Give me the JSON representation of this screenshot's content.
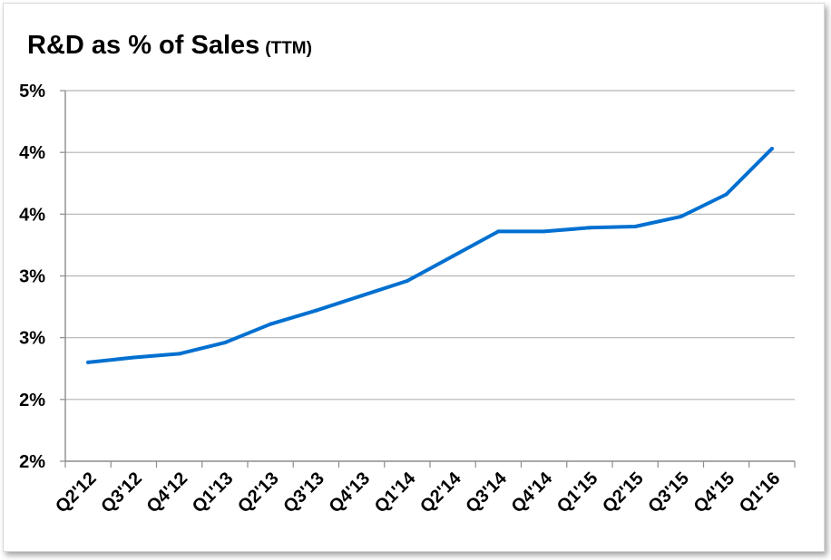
{
  "chart_data": {
    "type": "line",
    "title": "R&D as % of Sales",
    "subtitle": "(TTM)",
    "xlabel": "",
    "ylabel": "",
    "categories": [
      "Q2'12",
      "Q3'12",
      "Q4'12",
      "Q1'13",
      "Q2'13",
      "Q3'13",
      "Q4'13",
      "Q1'14",
      "Q2'14",
      "Q3'14",
      "Q4'14",
      "Q1'15",
      "Q2'15",
      "Q3'15",
      "Q4'15",
      "Q1'16"
    ],
    "series": [
      {
        "values": [
          2.3,
          2.34,
          2.37,
          2.46,
          2.61,
          2.72,
          2.84,
          2.96,
          3.16,
          3.36,
          3.36,
          3.39,
          3.4,
          3.48,
          3.66,
          4.03
        ],
        "color": "#0070d0"
      }
    ],
    "ylim": [
      1.5,
      4.5
    ],
    "y_ticks": [
      1.5,
      2.0,
      2.5,
      3.0,
      3.5,
      4.0,
      4.5
    ],
    "y_tick_labels": [
      "2%",
      "2%",
      "3%",
      "3%",
      "4%",
      "4%",
      "5%"
    ],
    "grid": true,
    "legend": "none"
  }
}
